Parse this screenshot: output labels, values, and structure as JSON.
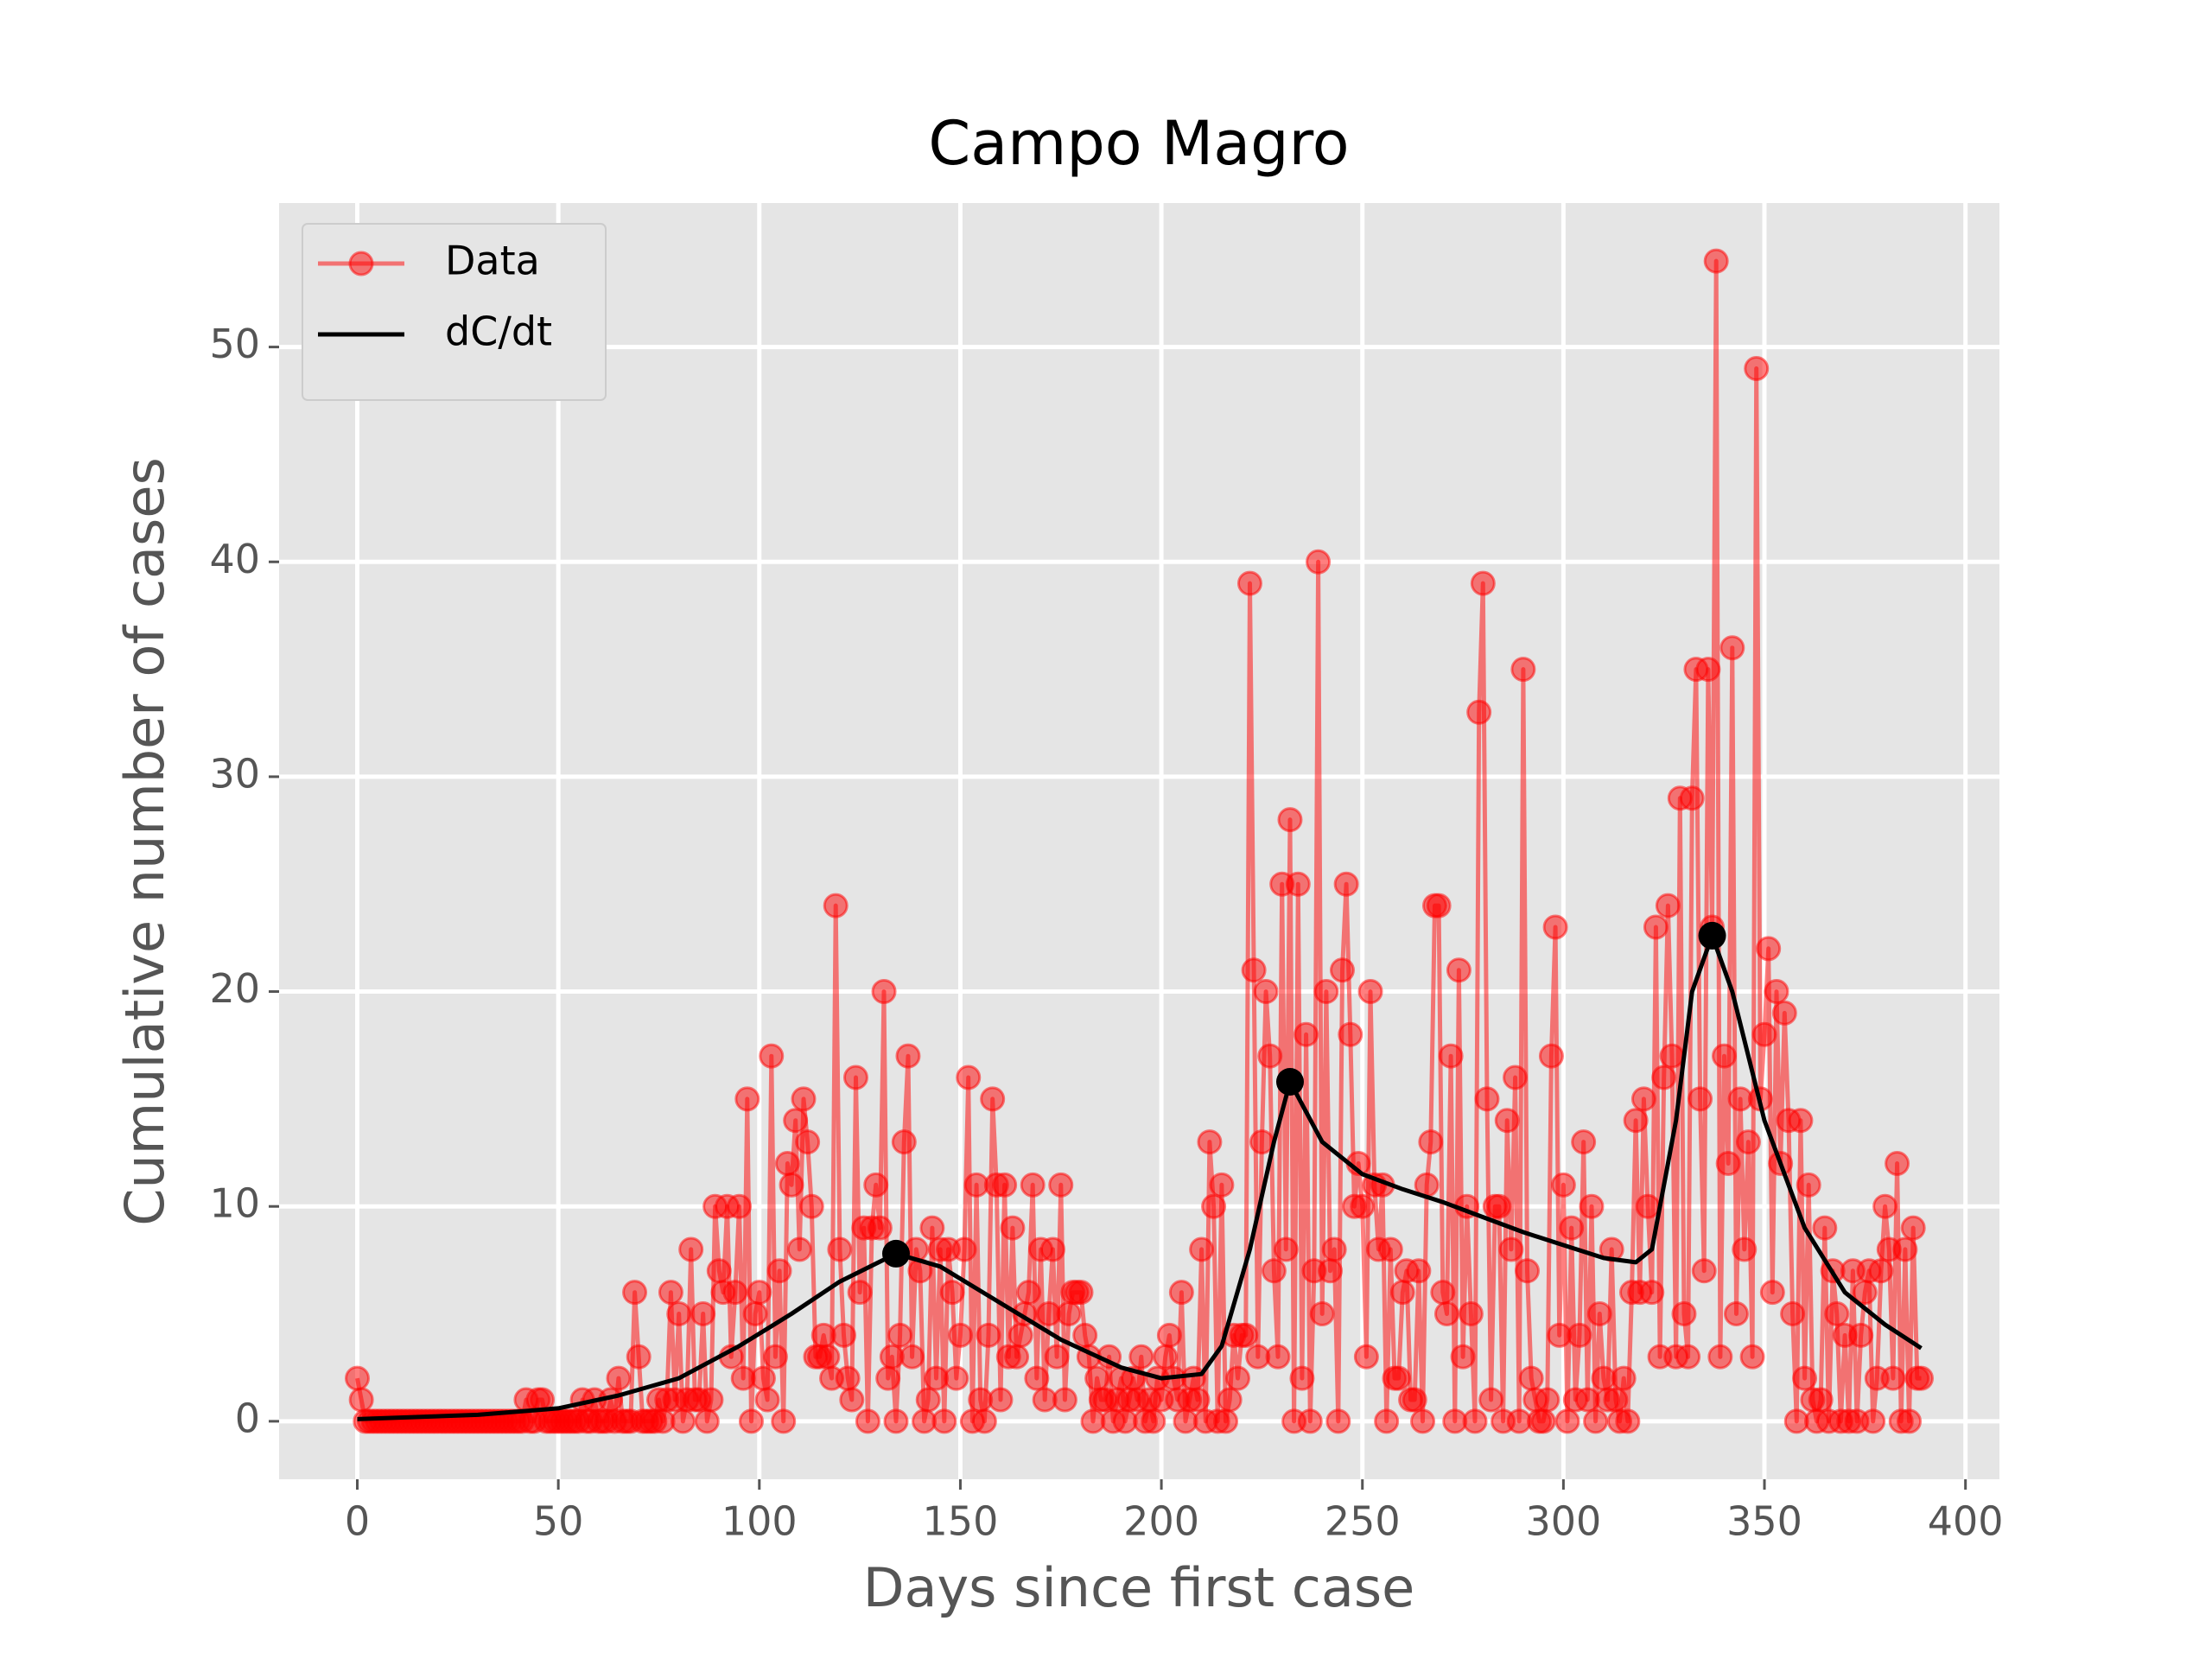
{
  "chart_data": {
    "type": "line",
    "title": "Campo Magro",
    "xlabel": "Days since first case",
    "ylabel": "Cumulative number of cases",
    "xlim": [
      -19.45,
      408.45
    ],
    "ylim": [
      -2.7,
      56.7
    ],
    "xticks": [
      0,
      50,
      100,
      150,
      200,
      250,
      300,
      350,
      400
    ],
    "yticks": [
      0,
      10,
      20,
      30,
      40,
      50
    ],
    "grid": true,
    "legend": "upper left",
    "series": [
      {
        "name": "Data",
        "color": "#ff0000",
        "marker": true,
        "x": [
          0,
          1,
          2,
          3,
          4,
          5,
          6,
          7,
          8,
          9,
          10,
          11,
          12,
          13,
          14,
          15,
          16,
          17,
          18,
          19,
          20,
          21,
          22,
          23,
          24,
          25,
          26,
          27,
          28,
          29,
          30,
          31,
          32,
          33,
          34,
          35,
          36,
          37,
          38,
          39,
          40,
          41,
          42,
          43,
          44,
          45,
          46,
          47,
          48,
          49,
          50,
          51,
          52,
          53,
          54,
          55,
          56,
          57,
          58,
          59,
          60,
          61,
          62,
          63,
          64,
          65,
          66,
          67,
          68,
          69,
          70,
          71,
          72,
          73,
          74,
          75,
          76,
          77,
          78,
          79,
          80,
          81,
          82,
          83,
          84,
          85,
          86,
          87,
          88,
          89,
          90,
          91,
          92,
          93,
          94,
          95,
          96,
          97,
          98,
          99,
          100,
          101,
          102,
          103,
          104,
          105,
          106,
          107,
          108,
          109,
          110,
          111,
          112,
          113,
          114,
          115,
          116,
          117,
          118,
          119,
          120,
          121,
          122,
          123,
          124,
          125,
          126,
          127,
          128,
          129,
          130,
          131,
          132,
          133,
          134,
          135,
          136,
          137,
          138,
          139,
          140,
          141,
          142,
          143,
          144,
          145,
          146,
          147,
          148,
          149,
          150,
          151,
          152,
          153,
          154,
          155,
          156,
          157,
          158,
          159,
          160,
          161,
          162,
          163,
          164,
          165,
          166,
          167,
          168,
          169,
          170,
          171,
          172,
          173,
          174,
          175,
          176,
          177,
          178,
          179,
          180,
          181,
          182,
          183,
          184,
          185,
          186,
          187,
          188,
          189,
          190,
          191,
          192,
          193,
          194,
          195,
          196,
          197,
          198,
          199,
          200,
          201,
          202,
          203,
          204,
          205,
          206,
          207,
          208,
          209,
          210,
          211,
          212,
          213,
          214,
          215,
          216,
          217,
          218,
          219,
          220,
          221,
          222,
          223,
          224,
          225,
          226,
          227,
          228,
          229,
          230,
          231,
          232,
          233,
          234,
          235,
          236,
          237,
          238,
          239,
          240,
          241,
          242,
          243,
          244,
          245,
          246,
          247,
          248,
          249,
          250,
          251,
          252,
          253,
          254,
          255,
          256,
          257,
          258,
          259,
          260,
          261,
          262,
          263,
          264,
          265,
          266,
          267,
          268,
          269,
          270,
          271,
          272,
          273,
          274,
          275,
          276,
          277,
          278,
          279,
          280,
          281,
          282,
          283,
          284,
          285,
          286,
          287,
          288,
          289,
          290,
          291,
          292,
          293,
          294,
          295,
          296,
          297,
          298,
          299,
          300,
          301,
          302,
          303,
          304,
          305,
          306,
          307,
          308,
          309,
          310,
          311,
          312,
          313,
          314,
          315,
          316,
          317,
          318,
          319,
          320,
          321,
          322,
          323,
          324,
          325,
          326,
          327,
          328,
          329,
          330,
          331,
          332,
          333,
          334,
          335,
          336,
          337,
          338,
          339,
          340,
          341,
          342,
          343,
          344,
          345,
          346,
          347,
          348,
          349,
          350,
          351,
          352,
          353,
          354,
          355,
          356,
          357,
          358,
          359,
          360,
          361,
          362,
          363,
          364,
          365,
          366,
          367,
          368,
          369,
          370,
          371,
          372,
          373,
          374,
          375,
          376,
          377,
          378,
          379,
          380,
          381,
          382,
          383,
          384,
          385,
          386,
          387,
          388,
          389
        ],
        "values": [
          2,
          1,
          0,
          0,
          0,
          0,
          0,
          0,
          0,
          0,
          0,
          0,
          0,
          0,
          0,
          0,
          0,
          0,
          0,
          0,
          0,
          0,
          0,
          0,
          0,
          0,
          0,
          0,
          0,
          0,
          0,
          0,
          0,
          0,
          0,
          0,
          0,
          0,
          0,
          0,
          0,
          0,
          1,
          0,
          0,
          1,
          1,
          0,
          0,
          0,
          0,
          0,
          0,
          0,
          0,
          0,
          1,
          0,
          0,
          1,
          0,
          0,
          0,
          1,
          0,
          2,
          0,
          0,
          0,
          6,
          3,
          0,
          0,
          0,
          0,
          1,
          0,
          1,
          6,
          1,
          5,
          0,
          1,
          8,
          1,
          1,
          5,
          0,
          1,
          10,
          7,
          6,
          10,
          3,
          6,
          10,
          2,
          15,
          0,
          5,
          6,
          2,
          1,
          17,
          3,
          7,
          0,
          12,
          11,
          14,
          8,
          15,
          13,
          10,
          3,
          3,
          4,
          3,
          2,
          24,
          8,
          4,
          2,
          1,
          16,
          6,
          9,
          0,
          9,
          11,
          9,
          20,
          2,
          3,
          0,
          4,
          13,
          17,
          3,
          8,
          7,
          0,
          1,
          9,
          2,
          8,
          0,
          8,
          6,
          2,
          4,
          8,
          16,
          0,
          11,
          1,
          0,
          4,
          15,
          11,
          1,
          11,
          3,
          9,
          3,
          4,
          5,
          6,
          11,
          2,
          8,
          1,
          5,
          8,
          3,
          11,
          1,
          5,
          6,
          6,
          6,
          4,
          3,
          0,
          2,
          1,
          1,
          3,
          0,
          1,
          2,
          0,
          1,
          2,
          1,
          3,
          0,
          1,
          0,
          2,
          1,
          3,
          4,
          2,
          1,
          6,
          0,
          1,
          2,
          1,
          8,
          0,
          13,
          10,
          0,
          11,
          0,
          1,
          4,
          2,
          4,
          4,
          39,
          21,
          3,
          13,
          20,
          17,
          7,
          3,
          25,
          8,
          28,
          0,
          25,
          2,
          18,
          0,
          7,
          40,
          5,
          20,
          7,
          8,
          0,
          21,
          25,
          18,
          10,
          12,
          10,
          3,
          20,
          11,
          8,
          11,
          0,
          8,
          2,
          2,
          6,
          7,
          1,
          1,
          7,
          0,
          11,
          13,
          24,
          24,
          6,
          5,
          17,
          0,
          21,
          3,
          10,
          5,
          0,
          33,
          39,
          15,
          1,
          10,
          10,
          0,
          14,
          8,
          16,
          0,
          35,
          7,
          2,
          1,
          0,
          0,
          1,
          17,
          23,
          4,
          11,
          0,
          9,
          1,
          4,
          13,
          1,
          10,
          0,
          5,
          2,
          1,
          8,
          1,
          0,
          2,
          0,
          6,
          14,
          6,
          15,
          10,
          6,
          23,
          3,
          16,
          24,
          17,
          3,
          29,
          5,
          3,
          29,
          35,
          15,
          7,
          35,
          23,
          54,
          3,
          17,
          12,
          36,
          5,
          15,
          8,
          13,
          3,
          49,
          15,
          18,
          22,
          6,
          20,
          12,
          19,
          14,
          5,
          0,
          14,
          2,
          11,
          1,
          0,
          1,
          9,
          0,
          7,
          5,
          0,
          4,
          0,
          7,
          0,
          4,
          6,
          7,
          0,
          2,
          7,
          10,
          8,
          2,
          12,
          0,
          8,
          0,
          9,
          2,
          2
        ]
      },
      {
        "name": "dC/dt",
        "color": "#000000",
        "marker": false,
        "x": [
          0,
          30,
          50,
          65,
          80,
          95,
          108,
          120,
          134,
          145,
          160,
          175,
          190,
          200,
          210,
          215,
          222,
          228,
          232,
          240,
          250,
          260,
          270,
          280,
          290,
          300,
          310,
          318,
          322,
          328,
          332,
          337,
          342,
          350,
          360,
          370,
          380,
          389
        ],
        "values": [
          0.1,
          0.3,
          0.6,
          1.2,
          2,
          3.5,
          5,
          6.5,
          7.8,
          7.2,
          5.5,
          3.8,
          2.5,
          2,
          2.2,
          3.5,
          8,
          13,
          15.8,
          13,
          11.5,
          10.8,
          10.2,
          9.5,
          8.8,
          8.2,
          7.6,
          7.4,
          8,
          14,
          20,
          22.6,
          20,
          14,
          9,
          6,
          4.5,
          3.4
        ]
      }
    ],
    "peaks": {
      "color": "#000000",
      "x": [
        134,
        232,
        337
      ],
      "values": [
        7.8,
        15.8,
        22.6
      ]
    }
  }
}
